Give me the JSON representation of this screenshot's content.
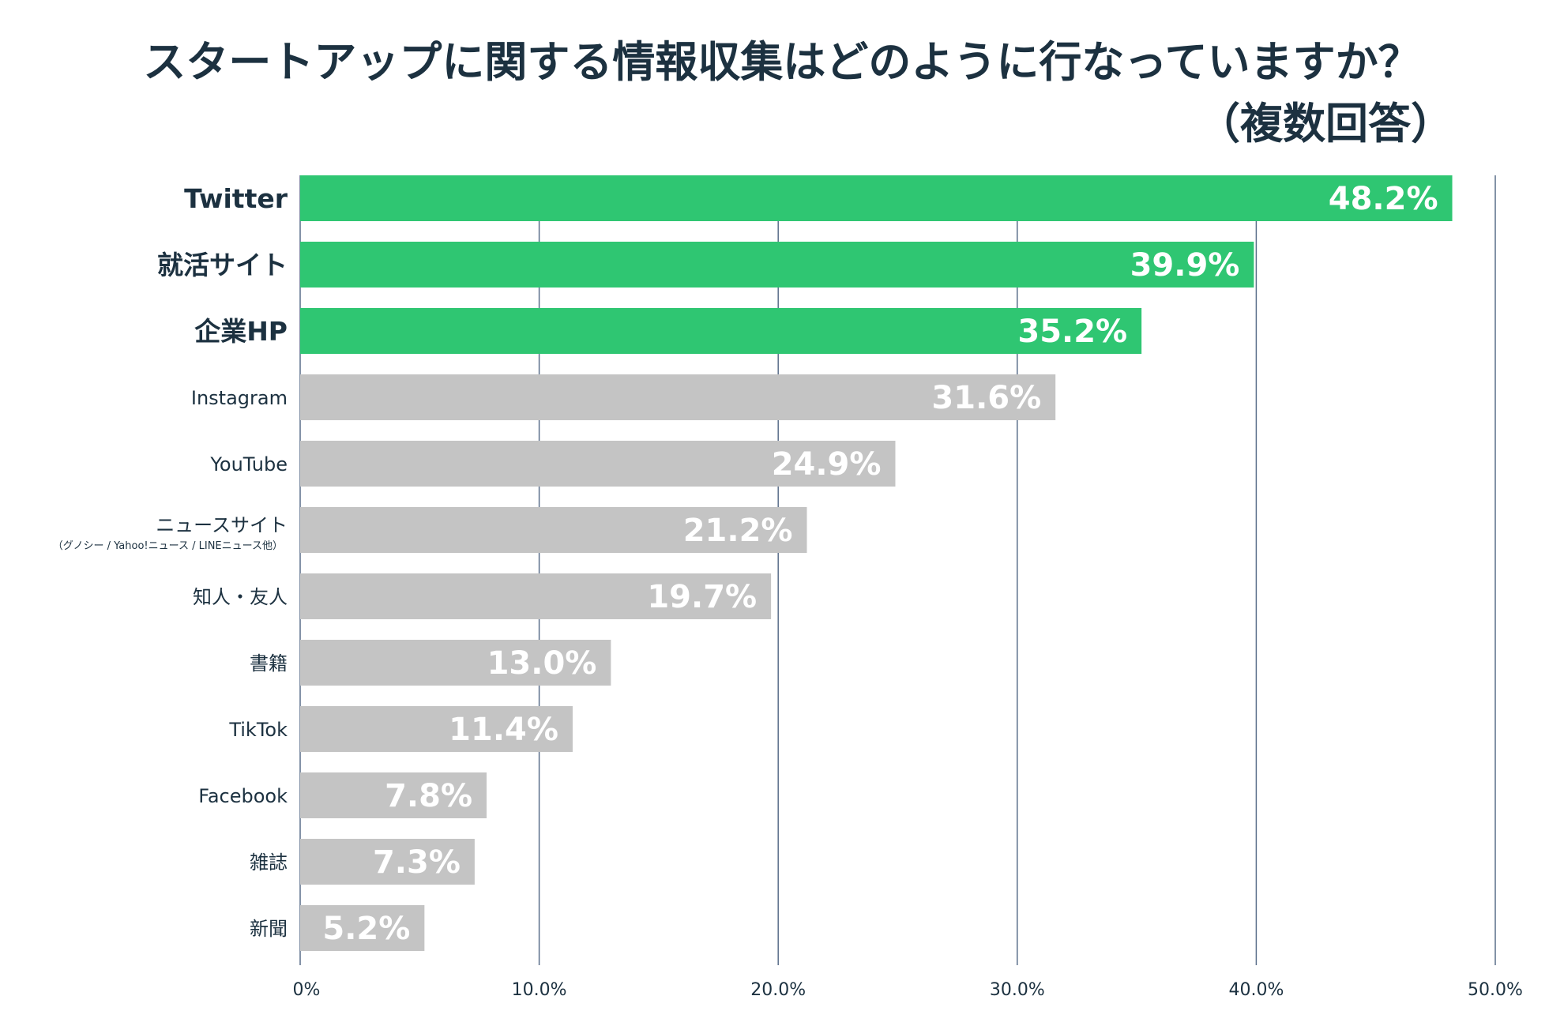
{
  "chart_data": {
    "type": "bar",
    "orientation": "horizontal",
    "title_line1": "スタートアップに関する情報収集はどのように行なっていますか？",
    "title_line2": "（複数回答）",
    "categories": [
      "Twitter",
      "就活サイト",
      "企業HP",
      "Instagram",
      "YouTube",
      "ニュースサイト",
      "知人・友人",
      "書籍",
      "TikTok",
      "Facebook",
      "雑誌",
      "新聞"
    ],
    "category_sublabels": {
      "ニュースサイト": "（グノシー / Yahoo!ニュース / LINEニュース他）"
    },
    "values": [
      48.2,
      39.9,
      35.2,
      31.6,
      24.9,
      21.2,
      19.7,
      13.0,
      11.4,
      7.8,
      7.3,
      5.2
    ],
    "value_labels": [
      "48.2%",
      "39.9%",
      "35.2%",
      "31.6%",
      "24.9%",
      "21.2%",
      "19.7%",
      "13.0%",
      "11.4%",
      "7.8%",
      "7.3%",
      "5.2%"
    ],
    "highlighted": [
      true,
      true,
      true,
      false,
      false,
      false,
      false,
      false,
      false,
      false,
      false,
      false
    ],
    "xlim": [
      0,
      50
    ],
    "xticks": [
      0,
      10,
      20,
      30,
      40,
      50
    ],
    "xtick_labels": [
      "0%",
      "10.0%",
      "20.0%",
      "30.0%",
      "40.0%",
      "50.0%"
    ],
    "grid": "vertical",
    "legend": "none",
    "colors": {
      "highlight": "#2fc672",
      "default": "#c4c4c4",
      "grid": "#5a6e8a",
      "text": "#1c3140"
    }
  }
}
